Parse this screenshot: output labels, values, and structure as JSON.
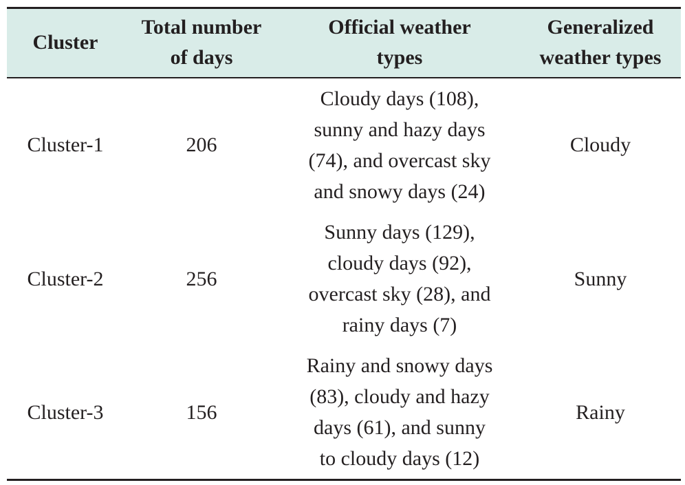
{
  "table": {
    "headers": [
      [
        "Cluster"
      ],
      [
        "Total number",
        "of days"
      ],
      [
        "Official weather",
        "types"
      ],
      [
        "Generalized",
        "weather types"
      ]
    ],
    "rows": [
      {
        "cluster": "Cluster-1",
        "total_days": "206",
        "official_lines": [
          "Cloudy days (108),",
          "sunny and hazy days",
          "(74), and overcast sky",
          "and snowy days (24)"
        ],
        "generalized": "Cloudy"
      },
      {
        "cluster": "Cluster-2",
        "total_days": "256",
        "official_lines": [
          "Sunny days (129),",
          "cloudy days (92),",
          "overcast sky (28), and",
          "rainy days (7)"
        ],
        "generalized": "Sunny"
      },
      {
        "cluster": "Cluster-3",
        "total_days": "156",
        "official_lines": [
          "Rainy and snowy days",
          "(83), cloudy and hazy",
          "days (61), and sunny",
          "to cloudy days (12)"
        ],
        "generalized": "Rainy"
      }
    ],
    "colors": {
      "header_background": "#d9ece8",
      "rule": "#231f20",
      "text": "#231f20"
    }
  }
}
